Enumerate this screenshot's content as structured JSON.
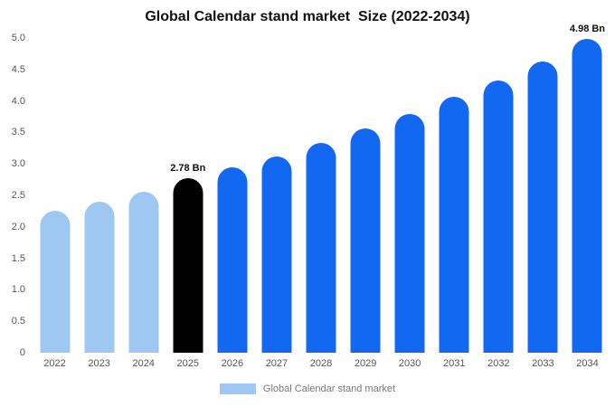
{
  "chart_data": {
    "type": "bar",
    "title": "Global Calendar stand market  Size (2022-2034)",
    "legend": "Global Calendar stand market",
    "categories": [
      "2022",
      "2023",
      "2024",
      "2025",
      "2026",
      "2027",
      "2028",
      "2029",
      "2030",
      "2031",
      "2032",
      "2033",
      "2034"
    ],
    "values": [
      2.26,
      2.4,
      2.56,
      2.78,
      2.94,
      3.12,
      3.34,
      3.56,
      3.79,
      4.06,
      4.33,
      4.62,
      4.98
    ],
    "unit": "Bn",
    "ylim": [
      0,
      5
    ],
    "yticks": [
      "0",
      "0.5",
      "1.0",
      "1.5",
      "2.0",
      "2.5",
      "3.0",
      "3.5",
      "4.0",
      "4.5",
      "5.0"
    ],
    "bar_colors": [
      "#9ec7f2",
      "#9ec7f2",
      "#9ec7f2",
      "#000000",
      "#1368f1",
      "#1368f1",
      "#1368f1",
      "#1368f1",
      "#1368f1",
      "#1368f1",
      "#1368f1",
      "#1368f1",
      "#1368f1"
    ],
    "annotations": [
      {
        "index": 3,
        "text": "2.78 Bn"
      },
      {
        "index": 12,
        "text": "4.98 Bn"
      }
    ],
    "colors": {
      "historical": "#9ec7f2",
      "highlight": "#000000",
      "forecast": "#1368f1",
      "axis_text": "#555555",
      "legend_text": "#777777"
    },
    "grid": false,
    "legend_position": "bottom"
  }
}
